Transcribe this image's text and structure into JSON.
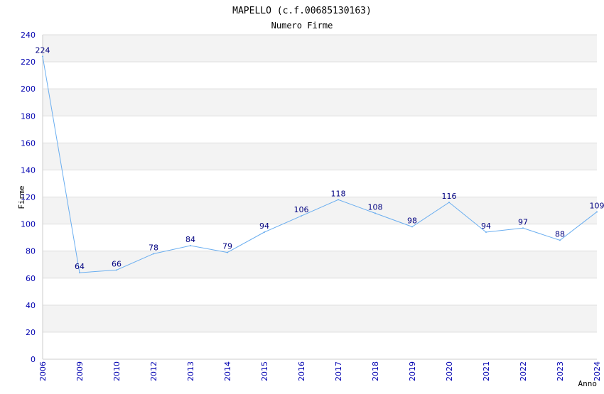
{
  "colors": {
    "line": "#6aaef0",
    "tick_label": "#0000b0",
    "data_label": "#000080",
    "band": "#f3f3f3",
    "grid": "#dddddd",
    "text": "#000000"
  },
  "chart_data": {
    "type": "line",
    "title": "MAPELLO (c.f.00685130163)",
    "subtitle": "Numero Firme",
    "xlabel": "Anno",
    "ylabel": "Firme",
    "ylim": [
      0,
      240
    ],
    "yticks": [
      0,
      20,
      40,
      60,
      80,
      100,
      120,
      140,
      160,
      180,
      200,
      220,
      240
    ],
    "grid": true,
    "legend": "none",
    "categories": [
      "2006",
      "2009",
      "2010",
      "2012",
      "2013",
      "2014",
      "2015",
      "2016",
      "2017",
      "2018",
      "2019",
      "2020",
      "2021",
      "2022",
      "2023",
      "2024"
    ],
    "values": [
      224,
      64,
      66,
      78,
      84,
      79,
      94,
      106,
      118,
      108,
      98,
      116,
      94,
      97,
      88,
      109
    ]
  }
}
